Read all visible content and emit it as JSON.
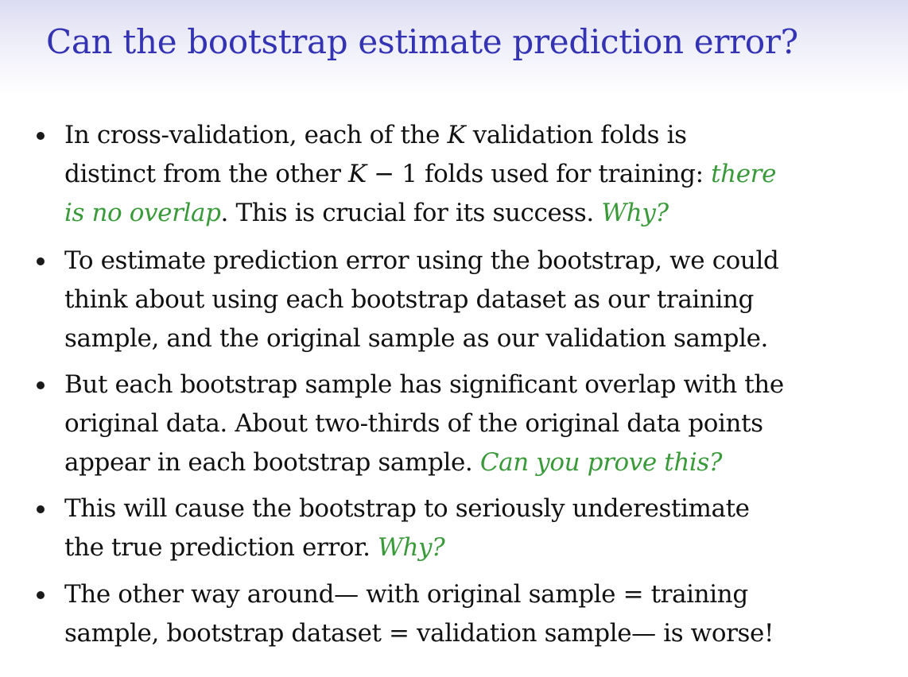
{
  "slide": {
    "title": "Can the bootstrap estimate prediction error?",
    "bullets": [
      {
        "lines": [
          [
            {
              "text": "In cross-validation, each of the ",
              "style": "normal"
            },
            {
              "text": "K",
              "style": "math"
            },
            {
              "text": " validation folds is",
              "style": "normal"
            }
          ],
          [
            {
              "text": "distinct from the other ",
              "style": "normal"
            },
            {
              "text": "K",
              "style": "math"
            },
            {
              "text": " − 1 folds used for training: ",
              "style": "normal"
            },
            {
              "text": "there",
              "style": "green"
            }
          ],
          [
            {
              "text": "is no overlap",
              "style": "green"
            },
            {
              "text": ". This is crucial for its success.  ",
              "style": "normal"
            },
            {
              "text": "Why?",
              "style": "green"
            }
          ]
        ]
      },
      {
        "lines": [
          [
            {
              "text": "To estimate prediction error using the bootstrap, we could",
              "style": "normal"
            }
          ],
          [
            {
              "text": "think about using each bootstrap dataset as our training",
              "style": "normal"
            }
          ],
          [
            {
              "text": "sample, and the original sample as our validation sample.",
              "style": "normal"
            }
          ]
        ]
      },
      {
        "lines": [
          [
            {
              "text": "But each bootstrap sample has significant overlap with the",
              "style": "normal"
            }
          ],
          [
            {
              "text": "original data. About two-thirds of the original data points",
              "style": "normal"
            }
          ],
          [
            {
              "text": "appear in each bootstrap sample.  ",
              "style": "normal"
            },
            {
              "text": "Can you prove this?",
              "style": "green"
            }
          ]
        ]
      },
      {
        "lines": [
          [
            {
              "text": "This will cause the bootstrap to seriously underestimate",
              "style": "normal"
            }
          ],
          [
            {
              "text": "the true prediction error.  ",
              "style": "normal"
            },
            {
              "text": "Why?",
              "style": "green"
            }
          ]
        ]
      },
      {
        "lines": [
          [
            {
              "text": "The other way around— with original sample = training",
              "style": "normal"
            }
          ],
          [
            {
              "text": "sample, bootstrap dataset = validation sample— is worse!",
              "style": "normal"
            }
          ]
        ]
      }
    ]
  }
}
